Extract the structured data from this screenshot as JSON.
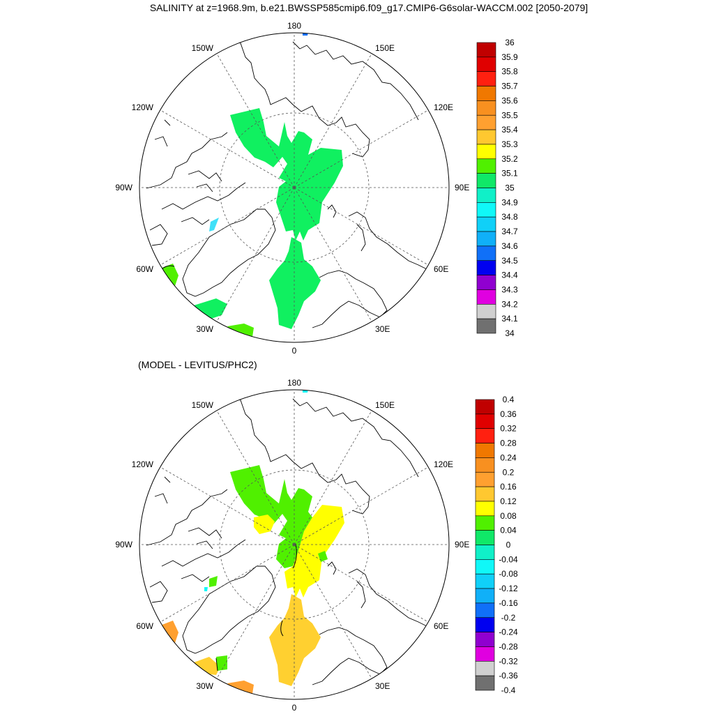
{
  "title": "SALINITY at z=1968.9m, b.e21.BWSSP585cmip6.f09_g17.CMIP6-G6solar-WACCM.002 [2050-2079]",
  "panels": [
    {
      "id": "top",
      "subtitle": "",
      "longitude_labels": [
        "180",
        "150E",
        "120E",
        "90E",
        "60E",
        "30E",
        "0",
        "30W",
        "60W",
        "90W",
        "120W",
        "150W"
      ],
      "colorbar": {
        "labels": [
          "36",
          "35.9",
          "35.8",
          "35.7",
          "35.6",
          "35.5",
          "35.4",
          "35.3",
          "35.2",
          "35.1",
          "35",
          "34.9",
          "34.8",
          "34.7",
          "34.6",
          "34.5",
          "34.4",
          "34.3",
          "34.2",
          "34.1",
          "34"
        ]
      }
    },
    {
      "id": "bottom",
      "subtitle": "(MODEL - LEVITUS/PHC2)",
      "longitude_labels": [
        "180",
        "150E",
        "120E",
        "90E",
        "60E",
        "30E",
        "0",
        "30W",
        "60W",
        "90W",
        "120W",
        "150W"
      ],
      "colorbar": {
        "labels": [
          "0.4",
          "0.36",
          "0.32",
          "0.28",
          "0.24",
          "0.2",
          "0.16",
          "0.12",
          "0.08",
          "0.04",
          "0",
          "-0.04",
          "-0.08",
          "-0.12",
          "-0.16",
          "-0.2",
          "-0.24",
          "-0.28",
          "-0.32",
          "-0.36",
          "-0.4"
        ]
      }
    }
  ],
  "colors": {
    "palette": [
      "#c00000",
      "#e00000",
      "#ff2010",
      "#f07800",
      "#f89020",
      "#ffa030",
      "#ffc830",
      "#ffff00",
      "#50f000",
      "#10e868",
      "#10f0c8",
      "#10f8f8",
      "#10d0f8",
      "#10b0f8",
      "#1070f8",
      "#0000f0",
      "#9000d0",
      "#e000e0",
      "#d0d0d0",
      "#707070"
    ],
    "top_field": "#10f060",
    "top_cyan": "#40e0f8",
    "bottom_green": "#50f000",
    "bottom_yellow": "#ffff00",
    "bottom_gold": "#ffd030",
    "bottom_orange": "#ffa030",
    "bottom_cyan": "#10f8f8"
  }
}
